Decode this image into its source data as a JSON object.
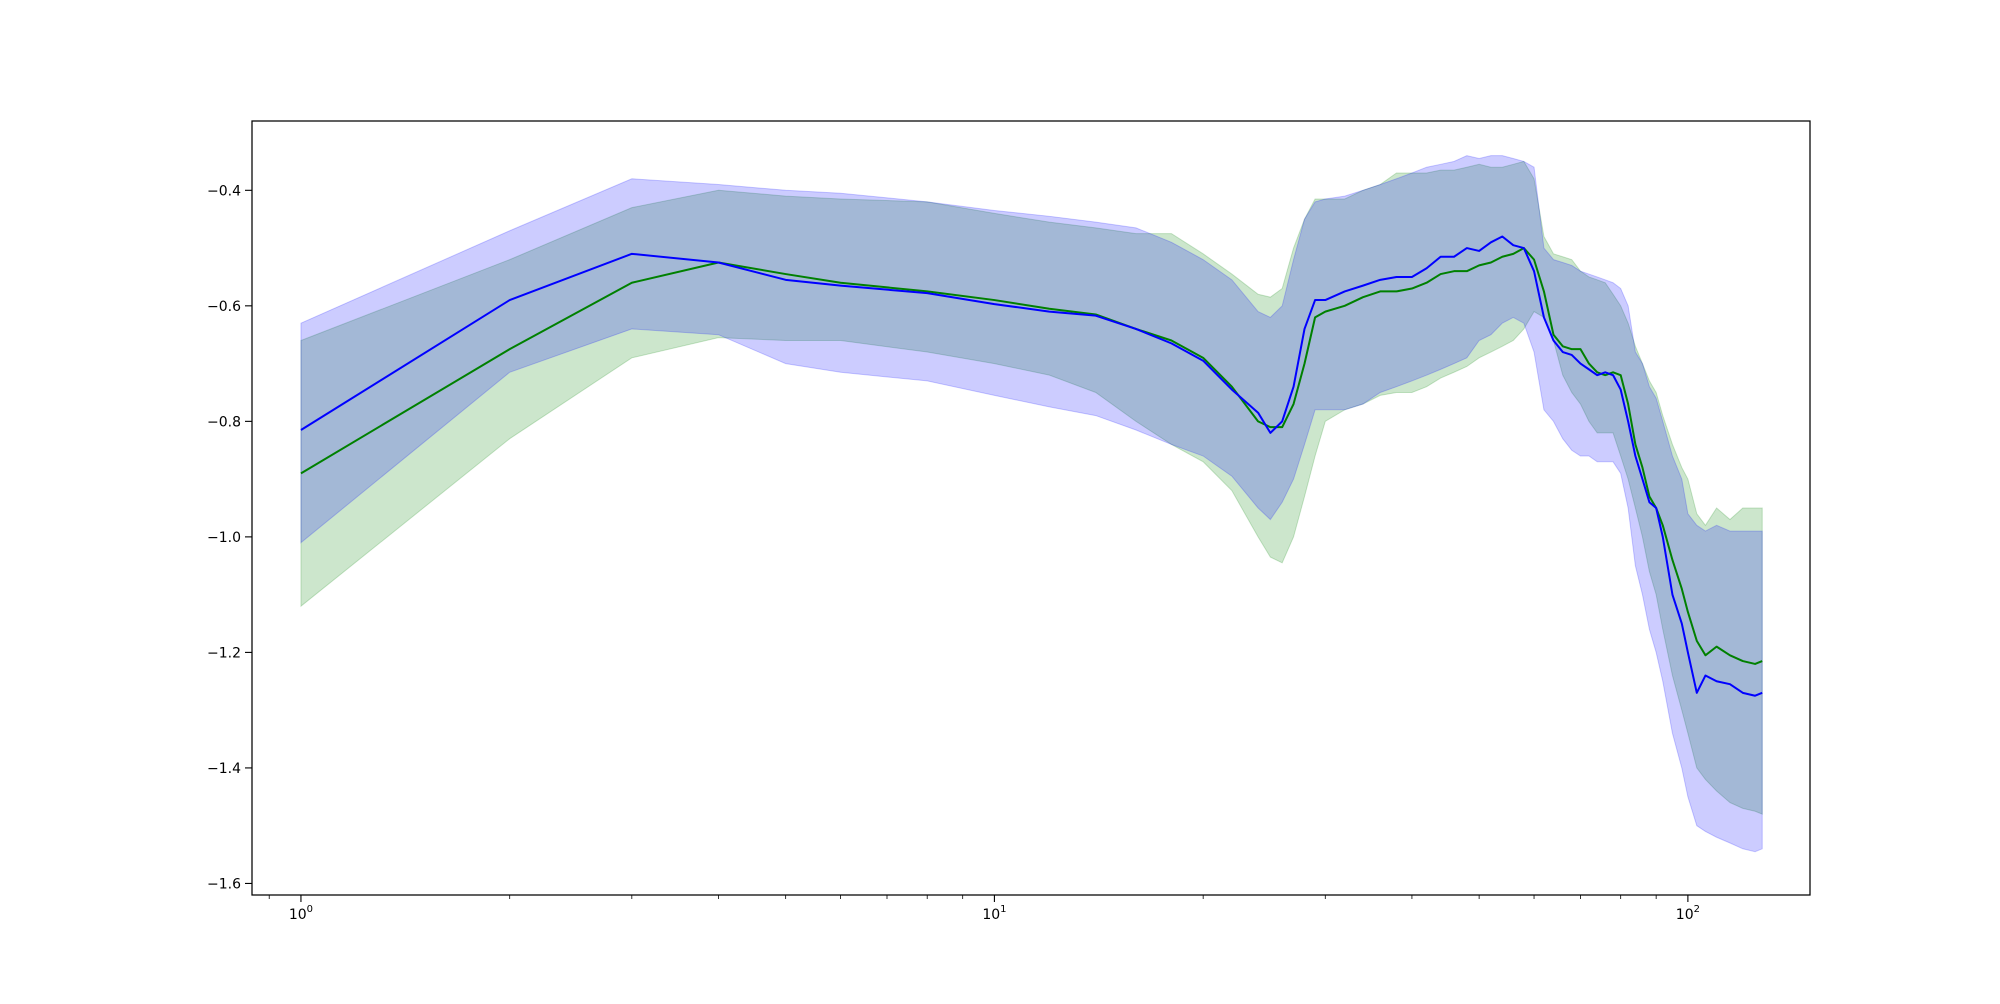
{
  "chart_data": {
    "type": "line",
    "title": "",
    "xlabel": "",
    "ylabel": "",
    "xscale": "log",
    "xlim": [
      0.85,
      150
    ],
    "ylim": [
      -1.62,
      -0.28
    ],
    "grid": false,
    "x_ticks": [
      {
        "value": 1,
        "base": "10",
        "exp": "0"
      },
      {
        "value": 10,
        "base": "10",
        "exp": "1"
      },
      {
        "value": 100,
        "base": "10",
        "exp": "2"
      }
    ],
    "y_ticks": [
      {
        "value": -0.4,
        "label": "−0.4"
      },
      {
        "value": -0.6,
        "label": "−0.6"
      },
      {
        "value": -0.8,
        "label": "−0.8"
      },
      {
        "value": -1.0,
        "label": "−1.0"
      },
      {
        "value": -1.2,
        "label": "−1.2"
      },
      {
        "value": -1.4,
        "label": "−1.4"
      },
      {
        "value": -1.6,
        "label": "−1.6"
      }
    ],
    "series": [
      {
        "color": "#008000",
        "band_color": "#008000",
        "band_opacity": 0.2,
        "x": [
          1,
          2,
          3,
          4,
          5,
          6,
          8,
          10,
          12,
          14,
          16,
          18,
          20,
          22,
          24,
          25,
          26,
          27,
          28,
          29,
          30,
          32,
          34,
          36,
          38,
          40,
          42,
          44,
          46,
          48,
          50,
          52,
          54,
          56,
          58,
          60,
          62,
          64,
          66,
          68,
          70,
          72,
          74,
          76,
          78,
          80,
          82,
          84,
          86,
          88,
          90,
          92,
          95,
          98,
          100,
          103,
          106,
          110,
          115,
          120,
          125,
          128
        ],
        "y": [
          -0.89,
          -0.675,
          -0.56,
          -0.525,
          -0.545,
          -0.56,
          -0.575,
          -0.59,
          -0.605,
          -0.615,
          -0.64,
          -0.66,
          -0.69,
          -0.74,
          -0.8,
          -0.81,
          -0.81,
          -0.77,
          -0.7,
          -0.62,
          -0.61,
          -0.6,
          -0.585,
          -0.575,
          -0.575,
          -0.57,
          -0.56,
          -0.545,
          -0.54,
          -0.54,
          -0.53,
          -0.525,
          -0.515,
          -0.51,
          -0.5,
          -0.52,
          -0.575,
          -0.65,
          -0.67,
          -0.675,
          -0.675,
          -0.7,
          -0.715,
          -0.72,
          -0.715,
          -0.72,
          -0.77,
          -0.84,
          -0.88,
          -0.93,
          -0.95,
          -0.98,
          -1.04,
          -1.09,
          -1.13,
          -1.18,
          -1.205,
          -1.19,
          -1.205,
          -1.215,
          -1.22,
          -1.215
        ],
        "upper": [
          -0.66,
          -0.52,
          -0.43,
          -0.4,
          -0.41,
          -0.415,
          -0.42,
          -0.44,
          -0.455,
          -0.465,
          -0.475,
          -0.475,
          -0.51,
          -0.545,
          -0.58,
          -0.585,
          -0.57,
          -0.5,
          -0.45,
          -0.415,
          -0.415,
          -0.415,
          -0.4,
          -0.39,
          -0.37,
          -0.37,
          -0.37,
          -0.365,
          -0.365,
          -0.36,
          -0.355,
          -0.36,
          -0.36,
          -0.355,
          -0.35,
          -0.38,
          -0.48,
          -0.51,
          -0.515,
          -0.52,
          -0.54,
          -0.55,
          -0.555,
          -0.56,
          -0.58,
          -0.6,
          -0.63,
          -0.67,
          -0.7,
          -0.73,
          -0.75,
          -0.79,
          -0.84,
          -0.88,
          -0.9,
          -0.96,
          -0.98,
          -0.95,
          -0.97,
          -0.95,
          -0.95,
          -0.95
        ],
        "lower": [
          -1.12,
          -0.83,
          -0.69,
          -0.655,
          -0.66,
          -0.66,
          -0.68,
          -0.7,
          -0.72,
          -0.75,
          -0.8,
          -0.84,
          -0.87,
          -0.92,
          -1.0,
          -1.035,
          -1.045,
          -1.0,
          -0.93,
          -0.86,
          -0.8,
          -0.78,
          -0.77,
          -0.755,
          -0.75,
          -0.75,
          -0.74,
          -0.725,
          -0.715,
          -0.705,
          -0.69,
          -0.68,
          -0.67,
          -0.66,
          -0.64,
          -0.61,
          -0.62,
          -0.66,
          -0.72,
          -0.75,
          -0.77,
          -0.8,
          -0.82,
          -0.82,
          -0.82,
          -0.86,
          -0.9,
          -0.95,
          -1.0,
          -1.06,
          -1.1,
          -1.16,
          -1.24,
          -1.3,
          -1.34,
          -1.4,
          -1.42,
          -1.44,
          -1.46,
          -1.47,
          -1.475,
          -1.48
        ]
      },
      {
        "color": "#0000ff",
        "band_color": "#0000ff",
        "band_opacity": 0.2,
        "x": [
          1,
          2,
          3,
          4,
          5,
          6,
          8,
          10,
          12,
          14,
          16,
          18,
          20,
          22,
          24,
          25,
          26,
          27,
          28,
          29,
          30,
          32,
          34,
          36,
          38,
          40,
          42,
          44,
          46,
          48,
          50,
          52,
          54,
          56,
          58,
          60,
          62,
          64,
          66,
          68,
          70,
          72,
          74,
          76,
          78,
          80,
          82,
          84,
          86,
          88,
          90,
          92,
          95,
          98,
          100,
          103,
          106,
          110,
          115,
          120,
          125,
          128
        ],
        "y": [
          -0.815,
          -0.59,
          -0.51,
          -0.525,
          -0.555,
          -0.565,
          -0.578,
          -0.597,
          -0.61,
          -0.617,
          -0.64,
          -0.665,
          -0.695,
          -0.745,
          -0.785,
          -0.82,
          -0.8,
          -0.74,
          -0.64,
          -0.59,
          -0.59,
          -0.575,
          -0.565,
          -0.555,
          -0.55,
          -0.55,
          -0.535,
          -0.515,
          -0.515,
          -0.5,
          -0.505,
          -0.49,
          -0.48,
          -0.495,
          -0.5,
          -0.54,
          -0.62,
          -0.66,
          -0.68,
          -0.685,
          -0.7,
          -0.71,
          -0.72,
          -0.715,
          -0.72,
          -0.745,
          -0.8,
          -0.86,
          -0.9,
          -0.94,
          -0.95,
          -1.0,
          -1.1,
          -1.15,
          -1.2,
          -1.27,
          -1.24,
          -1.25,
          -1.255,
          -1.27,
          -1.275,
          -1.27
        ],
        "upper": [
          -0.63,
          -0.47,
          -0.38,
          -0.39,
          -0.4,
          -0.405,
          -0.42,
          -0.435,
          -0.445,
          -0.455,
          -0.465,
          -0.49,
          -0.52,
          -0.555,
          -0.61,
          -0.62,
          -0.6,
          -0.52,
          -0.45,
          -0.42,
          -0.415,
          -0.41,
          -0.4,
          -0.39,
          -0.38,
          -0.37,
          -0.36,
          -0.355,
          -0.35,
          -0.34,
          -0.345,
          -0.34,
          -0.34,
          -0.345,
          -0.35,
          -0.36,
          -0.5,
          -0.52,
          -0.525,
          -0.53,
          -0.54,
          -0.545,
          -0.55,
          -0.555,
          -0.56,
          -0.57,
          -0.6,
          -0.68,
          -0.7,
          -0.74,
          -0.76,
          -0.8,
          -0.86,
          -0.9,
          -0.96,
          -0.98,
          -0.99,
          -0.98,
          -0.99,
          -0.99,
          -0.99,
          -0.99
        ],
        "lower": [
          -1.01,
          -0.715,
          -0.64,
          -0.65,
          -0.7,
          -0.715,
          -0.73,
          -0.755,
          -0.775,
          -0.79,
          -0.815,
          -0.84,
          -0.86,
          -0.895,
          -0.95,
          -0.97,
          -0.94,
          -0.9,
          -0.84,
          -0.78,
          -0.78,
          -0.78,
          -0.77,
          -0.75,
          -0.74,
          -0.73,
          -0.72,
          -0.71,
          -0.7,
          -0.69,
          -0.66,
          -0.65,
          -0.63,
          -0.62,
          -0.63,
          -0.68,
          -0.78,
          -0.8,
          -0.83,
          -0.85,
          -0.86,
          -0.86,
          -0.87,
          -0.87,
          -0.87,
          -0.89,
          -0.95,
          -1.05,
          -1.1,
          -1.16,
          -1.2,
          -1.25,
          -1.34,
          -1.4,
          -1.45,
          -1.5,
          -1.51,
          -1.52,
          -1.53,
          -1.54,
          -1.545,
          -1.54
        ]
      }
    ]
  }
}
